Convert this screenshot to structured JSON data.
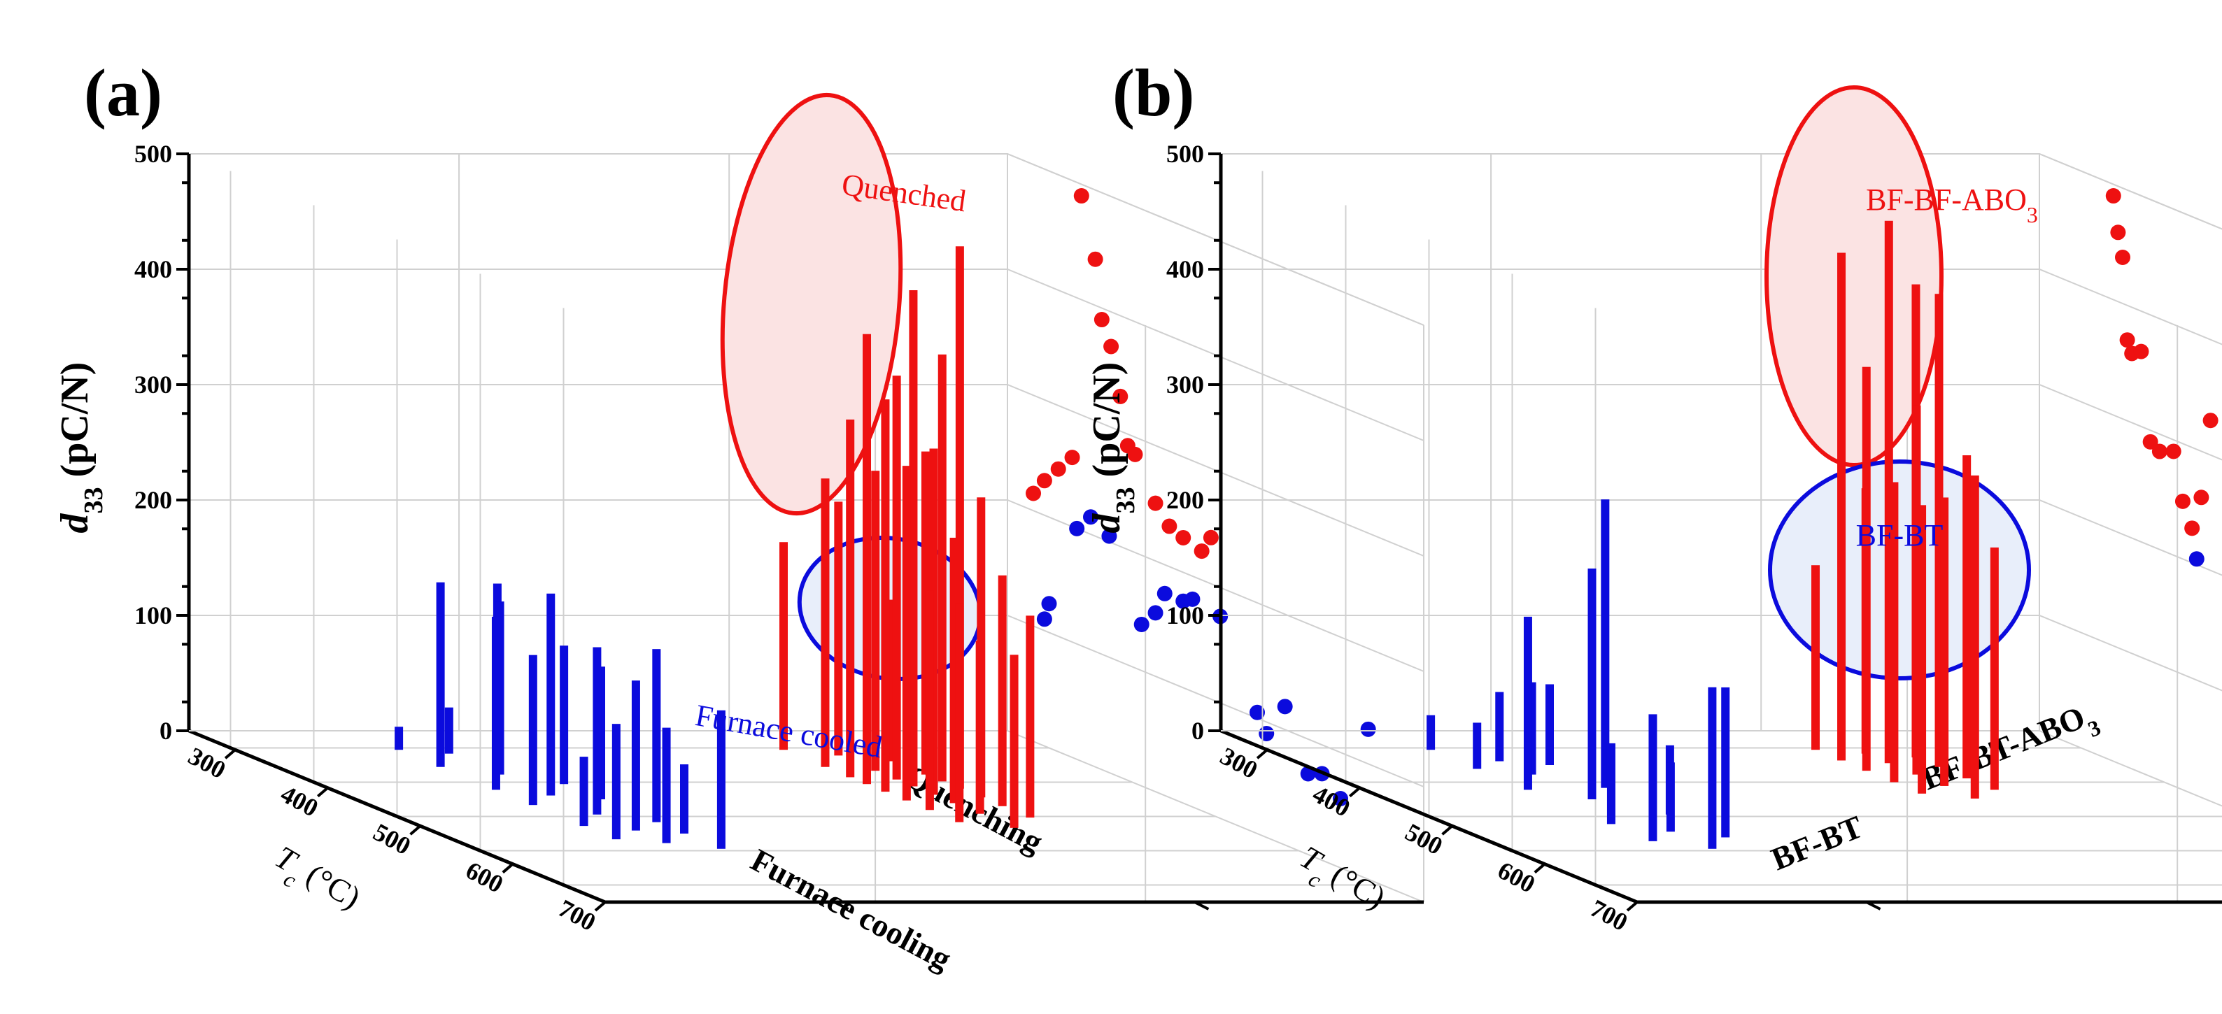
{
  "colors": {
    "red": "#ee1111",
    "blue": "#0b0bdd",
    "red_fill": "#fbe3e3",
    "blue_fill": "#e8eefa"
  },
  "chart_data": [
    {
      "type": "3d-bar-scatter",
      "panel_label": "(a)",
      "zlabel_main": "d",
      "zlabel_sub": "33",
      "zlabel_unit": " (pC/N)",
      "xlabel_main": "T",
      "xlabel_sub": "c",
      "xlabel_unit": " (°C)",
      "zlim": [
        0,
        500
      ],
      "zticks": [
        "0",
        "100",
        "200",
        "300",
        "400",
        "500"
      ],
      "xlim": [
        250,
        700
      ],
      "xticks": [
        "300",
        "400",
        "500",
        "600",
        "700"
      ],
      "categories": [
        "Furnace cooling",
        "Quenching"
      ],
      "series": [
        {
          "name": "Furnace cooled",
          "color": "blue",
          "bars": [
            {
              "x": 300,
              "z": 20
            },
            {
              "x": 310,
              "z": 40
            },
            {
              "x": 318,
              "z": 150
            },
            {
              "x": 345,
              "z": 160
            },
            {
              "x": 365,
              "z": 150
            },
            {
              "x": 390,
              "z": 120
            },
            {
              "x": 405,
              "z": 150
            },
            {
              "x": 420,
              "z": 175
            },
            {
              "x": 430,
              "z": 115
            },
            {
              "x": 445,
              "z": 130
            },
            {
              "x": 470,
              "z": 145
            },
            {
              "x": 490,
              "z": 150
            },
            {
              "x": 500,
              "z": 60
            },
            {
              "x": 512,
              "z": 130
            },
            {
              "x": 520,
              "z": 60
            },
            {
              "x": 535,
              "z": 100
            },
            {
              "x": 545,
              "z": 100
            },
            {
              "x": 560,
              "z": 120
            }
          ],
          "points": [
            {
              "x": 290,
              "z": 110
            },
            {
              "x": 295,
              "z": 125
            },
            {
              "x": 325,
              "z": 200
            },
            {
              "x": 340,
              "z": 215
            },
            {
              "x": 360,
              "z": 205
            },
            {
              "x": 395,
              "z": 140
            },
            {
              "x": 410,
              "z": 155
            },
            {
              "x": 420,
              "z": 175
            },
            {
              "x": 440,
              "z": 175
            },
            {
              "x": 450,
              "z": 180
            },
            {
              "x": 480,
              "z": 175
            },
            {
              "x": 520,
              "z": 105
            },
            {
              "x": 530,
              "z": 90
            },
            {
              "x": 550,
              "z": 120
            },
            {
              "x": 575,
              "z": 70
            },
            {
              "x": 590,
              "z": 75
            },
            {
              "x": 610,
              "z": 60
            },
            {
              "x": 640,
              "z": 130
            }
          ]
        },
        {
          "name": "Quenched",
          "color": "red",
          "bars": [
            {
              "x": 300,
              "z": 180
            },
            {
              "x": 315,
              "z": 220
            },
            {
              "x": 330,
              "z": 140
            },
            {
              "x": 345,
              "z": 250
            },
            {
              "x": 355,
              "z": 260
            },
            {
              "x": 365,
              "z": 280
            },
            {
              "x": 372,
              "z": 310
            },
            {
              "x": 378,
              "z": 350
            },
            {
              "x": 383,
              "z": 370
            },
            {
              "x": 390,
              "z": 390
            },
            {
              "x": 396,
              "z": 430
            },
            {
              "x": 402,
              "z": 470
            },
            {
              "x": 410,
              "z": 340
            },
            {
              "x": 418,
              "z": 300
            },
            {
              "x": 425,
              "z": 260
            },
            {
              "x": 433,
              "z": 290
            },
            {
              "x": 440,
              "z": 230
            },
            {
              "x": 448,
              "z": 200
            },
            {
              "x": 458,
              "z": 190
            },
            {
              "x": 468,
              "z": 150
            },
            {
              "x": 478,
              "z": 175
            },
            {
              "x": 490,
              "z": 190
            },
            {
              "x": 505,
              "z": 150
            }
          ],
          "points": [
            {
              "x": 330,
              "z": 490
            },
            {
              "x": 345,
              "z": 440
            },
            {
              "x": 352,
              "z": 390
            },
            {
              "x": 362,
              "z": 370
            },
            {
              "x": 372,
              "z": 330
            },
            {
              "x": 380,
              "z": 290
            },
            {
              "x": 388,
              "z": 285
            },
            {
              "x": 320,
              "z": 260
            },
            {
              "x": 305,
              "z": 245
            },
            {
              "x": 290,
              "z": 230
            },
            {
              "x": 278,
              "z": 215
            },
            {
              "x": 410,
              "z": 250
            },
            {
              "x": 425,
              "z": 235
            },
            {
              "x": 440,
              "z": 230
            },
            {
              "x": 460,
              "z": 225
            },
            {
              "x": 470,
              "z": 240
            }
          ]
        }
      ],
      "annotations": [
        {
          "text": "Quenched",
          "color": "red"
        },
        {
          "text": "Furnace cooled",
          "color": "blue"
        }
      ]
    },
    {
      "type": "3d-bar-scatter",
      "panel_label": "(b)",
      "zlabel_main": "d",
      "zlabel_sub": "33",
      "zlabel_unit": " (pC/N)",
      "xlabel_main": "T",
      "xlabel_sub": "c",
      "xlabel_unit": " (°C)",
      "zlim": [
        0,
        500
      ],
      "zticks": [
        "0",
        "100",
        "200",
        "300",
        "400",
        "500"
      ],
      "xlim": [
        250,
        700
      ],
      "xticks": [
        "300",
        "400",
        "500",
        "600",
        "700"
      ],
      "categories": [
        "BF-BT",
        "BF-BT-ABO3"
      ],
      "series": [
        {
          "name": "BF-BT",
          "color": "blue",
          "bars": [
            {
              "x": 300,
              "z": 30
            },
            {
              "x": 330,
              "z": 60
            },
            {
              "x": 340,
              "z": 70
            },
            {
              "x": 350,
              "z": 40
            },
            {
              "x": 365,
              "z": 80
            },
            {
              "x": 400,
              "z": 250
            },
            {
              "x": 405,
              "z": 150
            },
            {
              "x": 430,
              "z": 200
            },
            {
              "x": 470,
              "z": 60
            },
            {
              "x": 495,
              "z": 70
            },
            {
              "x": 515,
              "z": 60
            },
            {
              "x": 530,
              "z": 130
            },
            {
              "x": 540,
              "z": 110
            },
            {
              "x": 560,
              "z": 140
            }
          ],
          "points": [
            {
              "x": 420,
              "z": 205
            },
            {
              "x": 480,
              "z": 140
            },
            {
              "x": 520,
              "z": 145
            },
            {
              "x": 560,
              "z": 125
            },
            {
              "x": 590,
              "z": 75
            },
            {
              "x": 610,
              "z": 80
            },
            {
              "x": 625,
              "z": 110
            },
            {
              "x": 640,
              "z": 120
            },
            {
              "x": 660,
              "z": 140
            },
            {
              "x": 680,
              "z": 155
            }
          ]
        },
        {
          "name": "BF-BF-ABO3",
          "color": "red",
          "bars": [
            {
              "x": 300,
              "z": 160
            },
            {
              "x": 310,
              "z": 230
            },
            {
              "x": 320,
              "z": 410
            },
            {
              "x": 328,
              "z": 440
            },
            {
              "x": 335,
              "z": 470
            },
            {
              "x": 345,
              "z": 410
            },
            {
              "x": 355,
              "z": 350
            },
            {
              "x": 365,
              "z": 320
            },
            {
              "x": 375,
              "z": 280
            },
            {
              "x": 385,
              "z": 260
            },
            {
              "x": 395,
              "z": 250
            },
            {
              "x": 405,
              "z": 210
            },
            {
              "x": 415,
              "z": 250
            },
            {
              "x": 428,
              "z": 280
            }
          ],
          "points": [
            {
              "x": 330,
              "z": 490
            },
            {
              "x": 335,
              "z": 460
            },
            {
              "x": 340,
              "z": 440
            },
            {
              "x": 345,
              "z": 370
            },
            {
              "x": 350,
              "z": 360
            },
            {
              "x": 360,
              "z": 365
            },
            {
              "x": 370,
              "z": 290
            },
            {
              "x": 380,
              "z": 285
            },
            {
              "x": 395,
              "z": 290
            },
            {
              "x": 405,
              "z": 250
            },
            {
              "x": 415,
              "z": 230
            },
            {
              "x": 425,
              "z": 260
            },
            {
              "x": 435,
              "z": 330
            }
          ]
        }
      ],
      "annotations": [
        {
          "text": "BF-BF-ABO",
          "sub": "3",
          "color": "red"
        },
        {
          "text": "BF-BT",
          "color": "blue"
        }
      ]
    }
  ]
}
